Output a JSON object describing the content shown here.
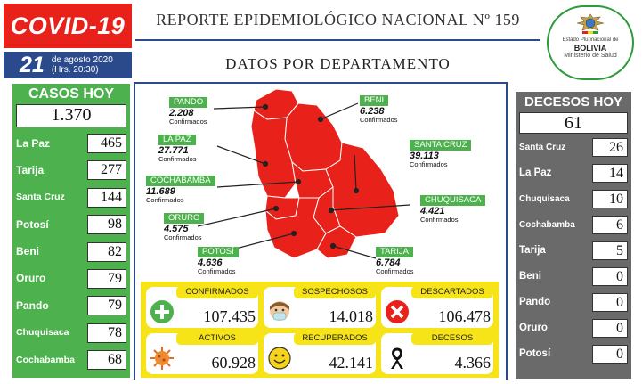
{
  "header": {
    "badge": "COVID-19",
    "day": "21",
    "date_text": "de agosto 2020 (Hrs. 20:30)",
    "title": "REPORTE EPIDEMIOLÓGICO NACIONAL Nº 159",
    "subtitle": "DATOS POR DEPARTAMENTO"
  },
  "emblem": {
    "text": "Estado Plurinacional de",
    "country": "BOLIVIA",
    "ministry": "Ministerio de Salud"
  },
  "casos": {
    "title": "CASOS HOY",
    "total": "1.370",
    "rows": [
      {
        "name": "La Paz",
        "value": "465"
      },
      {
        "name": "Tarija",
        "value": "277"
      },
      {
        "name": "Santa Cruz",
        "value": "144"
      },
      {
        "name": "Potosí",
        "value": "98"
      },
      {
        "name": "Beni",
        "value": "82"
      },
      {
        "name": "Oruro",
        "value": "79"
      },
      {
        "name": "Pando",
        "value": "79"
      },
      {
        "name": "Chuquisaca",
        "value": "78"
      },
      {
        "name": "Cochabamba",
        "value": "68"
      }
    ]
  },
  "decesos": {
    "title": "DECESOS HOY",
    "total": "61",
    "rows": [
      {
        "name": "Santa Cruz",
        "value": "26"
      },
      {
        "name": "La Paz",
        "value": "14"
      },
      {
        "name": "Chuquisaca",
        "value": "10"
      },
      {
        "name": "Cochabamba",
        "value": "6"
      },
      {
        "name": "Tarija",
        "value": "5"
      },
      {
        "name": "Beni",
        "value": "0"
      },
      {
        "name": "Pando",
        "value": "0"
      },
      {
        "name": "Oruro",
        "value": "0"
      },
      {
        "name": "Potosí",
        "value": "0"
      }
    ]
  },
  "map": {
    "confirmed_label": "Confirmados",
    "map_color": "#e8221b",
    "departments": [
      {
        "name": "PANDO",
        "value": "2.208"
      },
      {
        "name": "BENI",
        "value": "6.238"
      },
      {
        "name": "LA PAZ",
        "value": "27.771"
      },
      {
        "name": "SANTA CRUZ",
        "value": "39.113"
      },
      {
        "name": "COCHABAMBA",
        "value": "11.689"
      },
      {
        "name": "CHUQUISACA",
        "value": "4.421"
      },
      {
        "name": "ORURO",
        "value": "4.575"
      },
      {
        "name": "POTOSÍ",
        "value": "4.636"
      },
      {
        "name": "TARIJA",
        "value": "6.784"
      }
    ]
  },
  "summary": {
    "confirmados": {
      "label": "CONFIRMADOS",
      "value": "107.435",
      "icon": "plus-icon"
    },
    "sospechosos": {
      "label": "SOSPECHOSOS",
      "value": "14.018",
      "icon": "masked-face-icon"
    },
    "descartados": {
      "label": "DESCARTADOS",
      "value": "106.478",
      "icon": "x-icon"
    },
    "activos": {
      "label": "ACTIVOS",
      "value": "60.928",
      "icon": "virus-icon"
    },
    "recuperados": {
      "label": "RECUPERADOS",
      "value": "42.141",
      "icon": "smiley-icon"
    },
    "decesos": {
      "label": "DECESOS",
      "value": "4.366",
      "icon": "mourning-ribbon-icon"
    }
  },
  "colors": {
    "red": "#e8221b",
    "blue": "#2b4a8b",
    "green": "#4db24d",
    "gray": "#6b6a6a",
    "yellow": "#f6e318"
  }
}
